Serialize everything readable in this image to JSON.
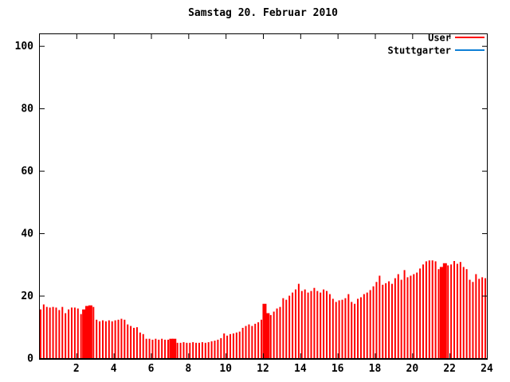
{
  "chart_data": {
    "type": "bar",
    "style": "impulses",
    "title": "Samstag 20. Februar 2010",
    "xlabel": "",
    "ylabel": "",
    "xlim": [
      0,
      24
    ],
    "ylim": [
      0,
      104
    ],
    "x_ticks": [
      2,
      4,
      6,
      8,
      10,
      12,
      14,
      16,
      18,
      20,
      22,
      24
    ],
    "y_ticks": [
      0,
      20,
      40,
      60,
      80,
      100
    ],
    "grid": "off",
    "legend_position": "top-right-inside",
    "interval_minutes": 10,
    "legend": [
      {
        "label": "User",
        "color": "#ff0000"
      },
      {
        "label": "Stuttgarter",
        "color": "#0e7fd6"
      }
    ],
    "series": [
      {
        "name": "User",
        "color": "#ff0000",
        "values": [
          15.6,
          17.2,
          16.4,
          16.2,
          16.4,
          16.2,
          15.4,
          16.4,
          14.4,
          15.6,
          16.2,
          16.2,
          15.9,
          14.1,
          15.6,
          16.7,
          16.9,
          16.4,
          12.3,
          11.8,
          12.1,
          11.8,
          12.1,
          11.8,
          12.1,
          12.3,
          12.6,
          12.3,
          10.8,
          10.3,
          9.7,
          9.9,
          8.2,
          7.7,
          6.2,
          6.2,
          5.9,
          6.2,
          5.9,
          6.2,
          5.9,
          5.9,
          6.2,
          6.2,
          4.9,
          4.9,
          5.1,
          4.9,
          4.9,
          5.1,
          4.9,
          4.9,
          5.1,
          4.9,
          5.1,
          5.4,
          5.6,
          5.9,
          6.4,
          7.9,
          7.2,
          7.7,
          7.9,
          8.2,
          8.5,
          9.7,
          10.3,
          10.8,
          10.3,
          11.0,
          11.5,
          12.3,
          17.4,
          14.4,
          13.8,
          14.9,
          15.9,
          16.4,
          19.2,
          18.7,
          20.0,
          21.0,
          22.0,
          23.8,
          21.5,
          22.0,
          21.0,
          21.5,
          22.5,
          21.5,
          21.0,
          22.0,
          21.5,
          20.5,
          19.0,
          18.0,
          18.5,
          18.7,
          19.2,
          20.5,
          18.0,
          17.4,
          19.0,
          19.5,
          20.5,
          21.0,
          21.8,
          23.0,
          24.4,
          26.4,
          23.5,
          24.0,
          24.6,
          23.8,
          25.6,
          26.9,
          25.1,
          28.2,
          25.9,
          26.4,
          26.9,
          27.4,
          28.7,
          30.0,
          31.0,
          31.3,
          31.3,
          31.0,
          28.5,
          29.2,
          30.4,
          29.7,
          30.0,
          31.1,
          30.2,
          30.8,
          29.2,
          28.5,
          25.1,
          24.4,
          26.9,
          25.4,
          25.9,
          25.6
        ],
        "dense_ranges": [
          [
            2.3,
            2.8
          ],
          [
            6.95,
            7.25
          ],
          [
            11.95,
            12.3
          ],
          [
            21.55,
            21.85
          ]
        ]
      },
      {
        "name": "Stuttgarter",
        "color": "#0e7fd6",
        "values": []
      }
    ],
    "colors": {
      "foreground": "#000000",
      "background": "#ffffff",
      "user_series": "#ff0000",
      "stuttgarter_series": "#0e7fd6"
    }
  }
}
